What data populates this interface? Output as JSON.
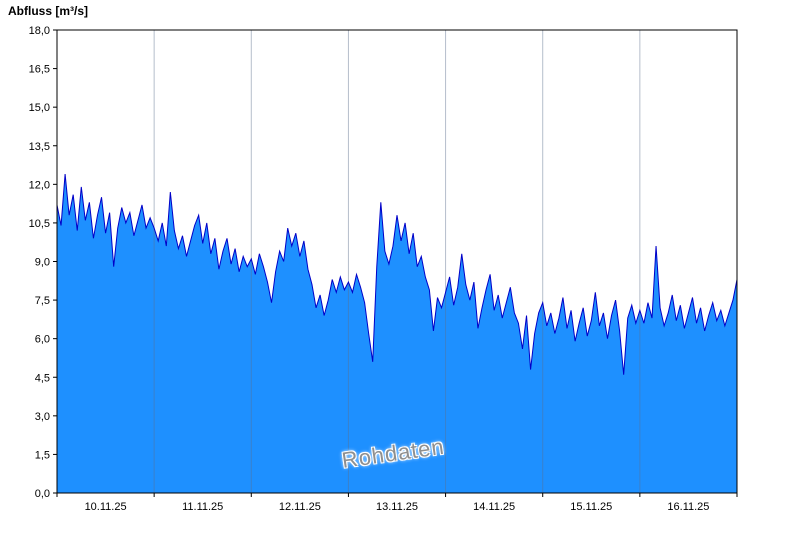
{
  "watermark": "Rohdaten",
  "chart_data": {
    "type": "area",
    "title": "Abfluss [m³/s]",
    "ylabel": "Abfluss [m³/s]",
    "xlabel": "",
    "ylim": [
      0,
      18
    ],
    "ytick_step": 1.5,
    "yticks_labels": [
      "0,0",
      "1,5",
      "3,0",
      "4,5",
      "6,0",
      "7,5",
      "9,0",
      "10,5",
      "12,0",
      "13,5",
      "15,0",
      "16,5",
      "18,0"
    ],
    "categories": [
      "10.11.25",
      "11.11.25",
      "12.11.25",
      "13.11.25",
      "14.11.25",
      "15.11.25",
      "16.11.25"
    ],
    "grid": "vertical-daily",
    "legend_position": "none",
    "series_name": "Rohdaten",
    "sampling": "hourly",
    "values": [
      11.2,
      10.4,
      12.4,
      10.8,
      11.6,
      10.2,
      11.9,
      10.6,
      11.3,
      9.9,
      10.8,
      11.5,
      10.1,
      10.9,
      8.8,
      10.3,
      11.1,
      10.5,
      10.9,
      10.0,
      10.6,
      11.2,
      10.3,
      10.7,
      10.3,
      9.8,
      10.5,
      9.6,
      11.7,
      10.2,
      9.5,
      10.0,
      9.2,
      9.8,
      10.4,
      10.8,
      9.7,
      10.5,
      9.3,
      9.9,
      8.7,
      9.4,
      9.9,
      8.9,
      9.5,
      8.6,
      9.2,
      8.8,
      9.1,
      8.5,
      9.3,
      8.8,
      8.2,
      7.4,
      8.6,
      9.4,
      9.0,
      10.3,
      9.6,
      10.1,
      9.2,
      9.8,
      8.7,
      8.1,
      7.2,
      7.7,
      6.9,
      7.5,
      8.3,
      7.8,
      8.4,
      7.9,
      8.2,
      7.8,
      8.5,
      8.0,
      7.4,
      6.2,
      5.1,
      8.8,
      11.3,
      9.4,
      8.9,
      9.6,
      10.8,
      9.8,
      10.5,
      9.3,
      10.1,
      8.8,
      9.2,
      8.4,
      7.9,
      6.3,
      7.6,
      7.2,
      7.8,
      8.4,
      7.3,
      8.0,
      9.3,
      8.1,
      7.5,
      8.2,
      6.4,
      7.2,
      7.9,
      8.5,
      7.1,
      7.7,
      6.8,
      7.4,
      8.0,
      7.0,
      6.6,
      5.6,
      6.9,
      4.8,
      6.2,
      7.0,
      7.4,
      6.5,
      7.0,
      6.2,
      6.8,
      7.6,
      6.4,
      7.1,
      5.9,
      6.6,
      7.2,
      6.1,
      6.7,
      7.8,
      6.5,
      7.0,
      6.0,
      6.9,
      7.5,
      6.3,
      4.6,
      6.8,
      7.3,
      6.6,
      7.1,
      6.6,
      7.4,
      6.8,
      9.6,
      7.2,
      6.5,
      7.0,
      7.7,
      6.7,
      7.3,
      6.4,
      7.0,
      7.6,
      6.6,
      7.2,
      6.3,
      6.9,
      7.4,
      6.7,
      7.1,
      6.5,
      7.0,
      7.5,
      8.3
    ],
    "colors": {
      "fill": "#1E90FF",
      "line": "#0000C8",
      "grid": "#5a6e8c",
      "border": "#000000",
      "tick_text": "#000000"
    }
  }
}
